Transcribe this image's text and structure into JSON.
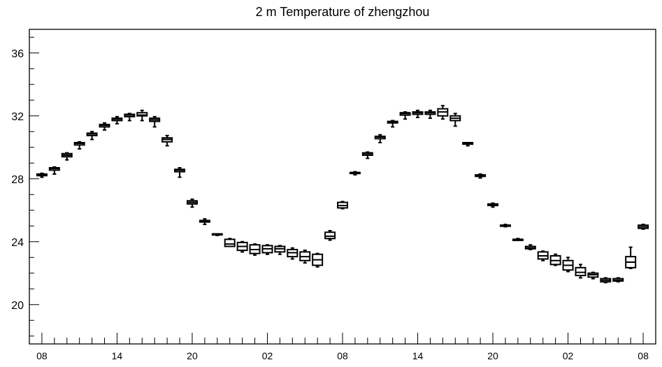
{
  "chart_data": {
    "type": "boxplot",
    "title": "2 m Temperature of zhengzhou",
    "xlabel": "",
    "ylabel": "",
    "ylim": [
      17.5,
      37.5
    ],
    "y_ticks": [
      20,
      24,
      28,
      32,
      36
    ],
    "x_tick_labels": [
      "08",
      "14",
      "20",
      "02",
      "08",
      "14",
      "20",
      "02",
      "08"
    ],
    "x_tick_hours": [
      0,
      6,
      12,
      18,
      24,
      30,
      36,
      42,
      48
    ],
    "x_range_hours": [
      -1,
      49
    ],
    "grid": false,
    "colors": {
      "stroke": "#000000",
      "fill": "#ffffff"
    },
    "series": [
      {
        "boxes": [
          {
            "x": 0,
            "min": 28.1,
            "q1": 28.2,
            "median": 28.25,
            "q3": 28.3,
            "max": 28.35
          },
          {
            "x": 1,
            "min": 28.3,
            "q1": 28.55,
            "median": 28.65,
            "q3": 28.7,
            "max": 28.75
          },
          {
            "x": 2,
            "min": 29.2,
            "q1": 29.4,
            "median": 29.5,
            "q3": 29.6,
            "max": 29.65
          },
          {
            "x": 3,
            "min": 29.9,
            "q1": 30.15,
            "median": 30.25,
            "q3": 30.3,
            "max": 30.35
          },
          {
            "x": 4,
            "min": 30.5,
            "q1": 30.75,
            "median": 30.85,
            "q3": 30.9,
            "max": 31.0
          },
          {
            "x": 5,
            "min": 31.1,
            "q1": 31.3,
            "median": 31.4,
            "q3": 31.45,
            "max": 31.55
          },
          {
            "x": 6,
            "min": 31.5,
            "q1": 31.7,
            "median": 31.8,
            "q3": 31.85,
            "max": 31.95
          },
          {
            "x": 7,
            "min": 31.7,
            "q1": 31.95,
            "median": 32.05,
            "q3": 32.1,
            "max": 32.15
          },
          {
            "x": 8,
            "min": 31.7,
            "q1": 32.0,
            "median": 32.05,
            "q3": 32.2,
            "max": 32.35
          },
          {
            "x": 9,
            "min": 31.3,
            "q1": 31.65,
            "median": 31.75,
            "q3": 31.85,
            "max": 31.95
          },
          {
            "x": 10,
            "min": 30.1,
            "q1": 30.35,
            "median": 30.5,
            "q3": 30.6,
            "max": 30.75
          },
          {
            "x": 11,
            "min": 28.1,
            "q1": 28.45,
            "median": 28.55,
            "q3": 28.6,
            "max": 28.7
          },
          {
            "x": 12,
            "min": 26.2,
            "q1": 26.4,
            "median": 26.5,
            "q3": 26.6,
            "max": 26.7
          },
          {
            "x": 13,
            "min": 25.1,
            "q1": 25.25,
            "median": 25.3,
            "q3": 25.35,
            "max": 25.45
          },
          {
            "x": 14,
            "min": 24.4,
            "q1": 24.45,
            "median": 24.45,
            "q3": 24.5,
            "max": 24.5
          },
          {
            "x": 15,
            "min": 23.7,
            "q1": 23.7,
            "median": 23.85,
            "q3": 24.15,
            "max": 24.2
          },
          {
            "x": 16,
            "min": 23.35,
            "q1": 23.45,
            "median": 23.7,
            "q3": 23.95,
            "max": 24.0
          },
          {
            "x": 17,
            "min": 23.15,
            "q1": 23.25,
            "median": 23.5,
            "q3": 23.8,
            "max": 23.85
          },
          {
            "x": 18,
            "min": 23.2,
            "q1": 23.3,
            "median": 23.55,
            "q3": 23.75,
            "max": 23.8
          },
          {
            "x": 19,
            "min": 23.2,
            "q1": 23.35,
            "median": 23.55,
            "q3": 23.7,
            "max": 23.75
          },
          {
            "x": 20,
            "min": 22.9,
            "q1": 23.05,
            "median": 23.3,
            "q3": 23.5,
            "max": 23.6
          },
          {
            "x": 21,
            "min": 22.65,
            "q1": 22.8,
            "median": 23.05,
            "q3": 23.35,
            "max": 23.45
          },
          {
            "x": 22,
            "min": 22.4,
            "q1": 22.5,
            "median": 22.85,
            "q3": 23.2,
            "max": 23.25
          },
          {
            "x": 23,
            "min": 24.1,
            "q1": 24.2,
            "median": 24.35,
            "q3": 24.6,
            "max": 24.7
          },
          {
            "x": 24,
            "min": 26.1,
            "q1": 26.15,
            "median": 26.3,
            "q3": 26.5,
            "max": 26.55
          },
          {
            "x": 25,
            "min": 28.25,
            "q1": 28.35,
            "median": 28.4,
            "q3": 28.4,
            "max": 28.45
          },
          {
            "x": 26,
            "min": 29.3,
            "q1": 29.5,
            "median": 29.6,
            "q3": 29.65,
            "max": 29.7
          },
          {
            "x": 27,
            "min": 30.3,
            "q1": 30.55,
            "median": 30.65,
            "q3": 30.7,
            "max": 30.8
          },
          {
            "x": 28,
            "min": 31.3,
            "q1": 31.55,
            "median": 31.6,
            "q3": 31.65,
            "max": 31.7
          },
          {
            "x": 29,
            "min": 31.8,
            "q1": 32.05,
            "median": 32.15,
            "q3": 32.2,
            "max": 32.25
          },
          {
            "x": 30,
            "min": 31.9,
            "q1": 32.1,
            "median": 32.2,
            "q3": 32.25,
            "max": 32.35
          },
          {
            "x": 31,
            "min": 31.85,
            "q1": 32.1,
            "median": 32.2,
            "q3": 32.25,
            "max": 32.35
          },
          {
            "x": 32,
            "min": 31.8,
            "q1": 32.0,
            "median": 32.25,
            "q3": 32.45,
            "max": 32.65
          },
          {
            "x": 33,
            "min": 31.35,
            "q1": 31.7,
            "median": 31.85,
            "q3": 32.0,
            "max": 32.15
          },
          {
            "x": 34,
            "min": 30.1,
            "q1": 30.2,
            "median": 30.25,
            "q3": 30.3,
            "max": 30.3
          },
          {
            "x": 35,
            "min": 28.05,
            "q1": 28.15,
            "median": 28.2,
            "q3": 28.25,
            "max": 28.3
          },
          {
            "x": 36,
            "min": 26.2,
            "q1": 26.3,
            "median": 26.35,
            "q3": 26.4,
            "max": 26.45
          },
          {
            "x": 37,
            "min": 24.95,
            "q1": 25.0,
            "median": 25.05,
            "q3": 25.05,
            "max": 25.1
          },
          {
            "x": 38,
            "min": 24.1,
            "q1": 24.15,
            "median": 24.15,
            "q3": 24.15,
            "max": 24.2
          },
          {
            "x": 39,
            "min": 23.5,
            "q1": 23.55,
            "median": 23.6,
            "q3": 23.7,
            "max": 23.8
          },
          {
            "x": 40,
            "min": 22.8,
            "q1": 22.9,
            "median": 23.1,
            "q3": 23.35,
            "max": 23.4
          },
          {
            "x": 41,
            "min": 22.5,
            "q1": 22.55,
            "median": 22.8,
            "q3": 23.1,
            "max": 23.2
          },
          {
            "x": 42,
            "min": 22.1,
            "q1": 22.2,
            "median": 22.5,
            "q3": 22.8,
            "max": 23.0
          },
          {
            "x": 43,
            "min": 21.7,
            "q1": 21.85,
            "median": 22.05,
            "q3": 22.35,
            "max": 22.55
          },
          {
            "x": 44,
            "min": 21.65,
            "q1": 21.75,
            "median": 21.9,
            "q3": 22.0,
            "max": 22.05
          },
          {
            "x": 45,
            "min": 21.4,
            "q1": 21.45,
            "median": 21.55,
            "q3": 21.65,
            "max": 21.7
          },
          {
            "x": 46,
            "min": 21.45,
            "q1": 21.5,
            "median": 21.55,
            "q3": 21.65,
            "max": 21.7
          },
          {
            "x": 47,
            "min": 22.3,
            "q1": 22.35,
            "median": 22.7,
            "q3": 23.05,
            "max": 23.65
          },
          {
            "x": 48,
            "min": 24.8,
            "q1": 24.85,
            "median": 24.95,
            "q3": 25.05,
            "max": 25.1
          }
        ]
      }
    ]
  }
}
